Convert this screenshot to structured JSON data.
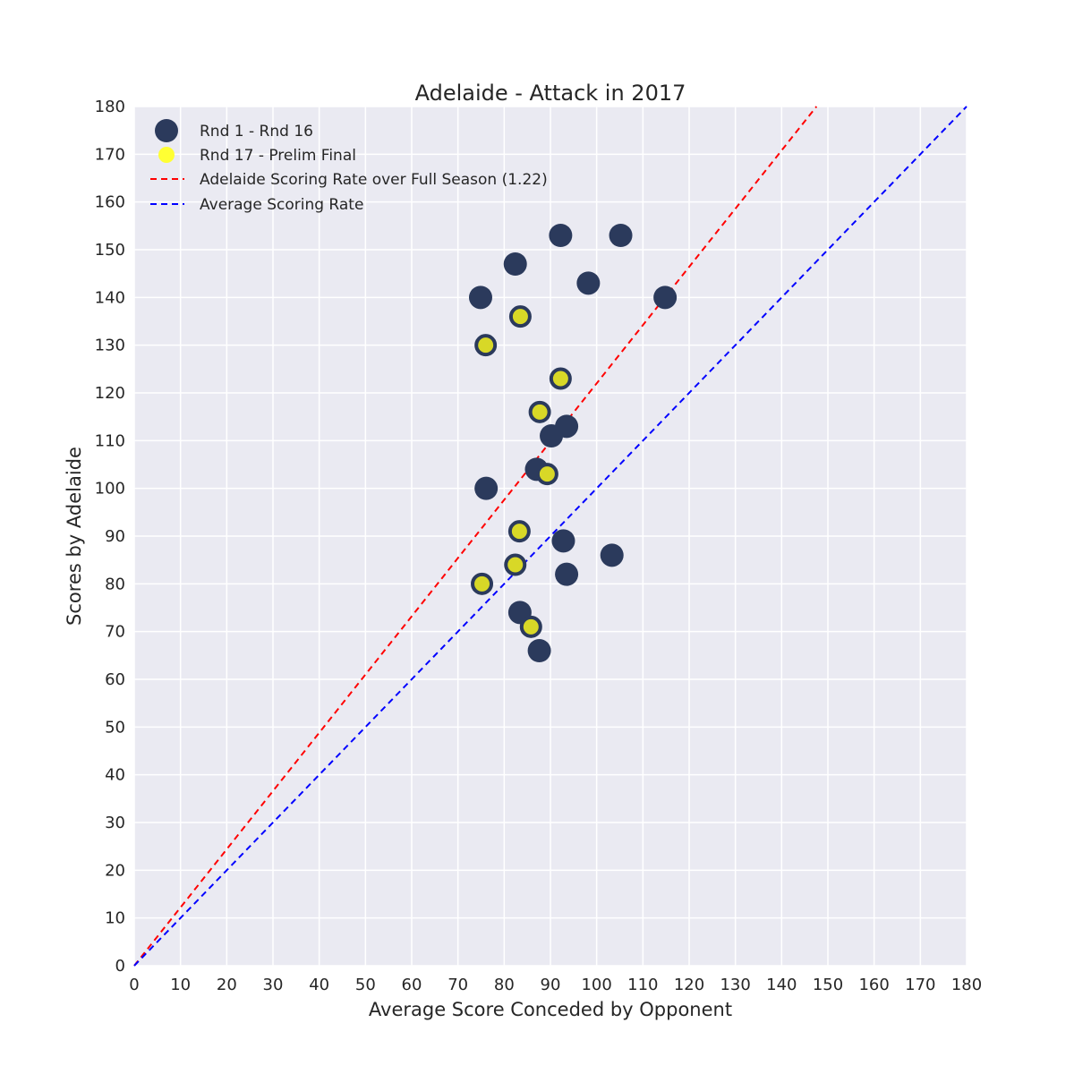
{
  "chart_data": {
    "type": "scatter",
    "title": "Adelaide - Attack in 2017",
    "xlabel": "Average Score Conceded by Opponent",
    "ylabel": "Scores by Adelaide",
    "xlim": [
      0,
      180
    ],
    "ylim": [
      0,
      180
    ],
    "xticks": [
      "0",
      "10",
      "20",
      "30",
      "40",
      "50",
      "60",
      "70",
      "80",
      "90",
      "100",
      "110",
      "120",
      "130",
      "140",
      "150",
      "160",
      "170",
      "180"
    ],
    "yticks": [
      "0",
      "10",
      "20",
      "30",
      "40",
      "50",
      "60",
      "70",
      "80",
      "90",
      "100",
      "110",
      "120",
      "130",
      "140",
      "150",
      "160",
      "170",
      "180"
    ],
    "grid": true,
    "legend_position": "top-left",
    "series": [
      {
        "name": "Rnd 1 - Rnd 16",
        "kind": "scatter",
        "color": "#2b3a5c",
        "points": [
          [
            92.2,
            153
          ],
          [
            105.2,
            153
          ],
          [
            82.4,
            147
          ],
          [
            98.2,
            143
          ],
          [
            74.9,
            140
          ],
          [
            114.8,
            140
          ],
          [
            93.5,
            113
          ],
          [
            90.2,
            111
          ],
          [
            87.0,
            104
          ],
          [
            76.1,
            100
          ],
          [
            92.8,
            89
          ],
          [
            103.3,
            86
          ],
          [
            93.5,
            82
          ],
          [
            83.4,
            74
          ],
          [
            87.6,
            66
          ]
        ]
      },
      {
        "name": "Rnd 17 - Prelim Final",
        "kind": "scatter",
        "color": "#d8d827",
        "edge_color": "#2b3a5c",
        "points": [
          [
            83.5,
            136
          ],
          [
            76.0,
            130
          ],
          [
            92.2,
            123
          ],
          [
            87.7,
            116
          ],
          [
            89.3,
            103
          ],
          [
            83.3,
            91
          ],
          [
            82.4,
            84
          ],
          [
            75.2,
            80
          ],
          [
            85.8,
            71
          ]
        ]
      },
      {
        "name": "Adelaide Scoring Rate over Full Season (1.22)",
        "kind": "line",
        "style": "dashed",
        "color": "#ff0000",
        "slope": 1.22
      },
      {
        "name": "Average Scoring Rate",
        "kind": "line",
        "style": "dashed",
        "color": "#0000ff",
        "slope": 1.0
      }
    ],
    "plot_background": "#eaeaf2",
    "grid_color": "#ffffff"
  }
}
